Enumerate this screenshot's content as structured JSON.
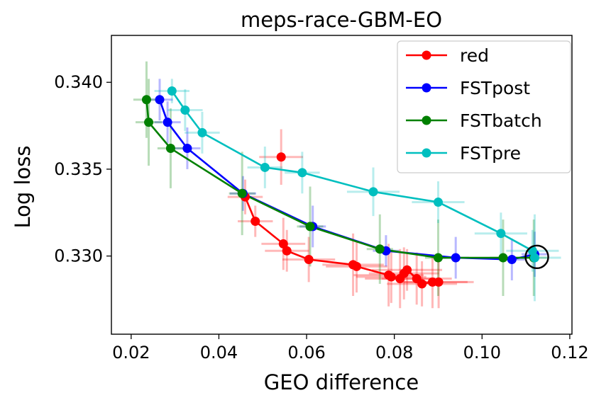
{
  "chart_data": {
    "type": "line",
    "title": "meps-race-GBM-EO",
    "xlabel": "GEO difference",
    "ylabel": "Log loss",
    "xlim": [
      0.0155,
      0.1205
    ],
    "ylim": [
      0.3255,
      0.3427
    ],
    "xticks": [
      0.02,
      0.04,
      0.06,
      0.08,
      0.1,
      0.12
    ],
    "xtick_labels": [
      "0.02",
      "0.04",
      "0.06",
      "0.08",
      "0.10",
      "0.12"
    ],
    "yticks": [
      0.33,
      0.335,
      0.34
    ],
    "ytick_labels": [
      "0.330",
      "0.335",
      "0.340"
    ],
    "grid": false,
    "legend_position": "top-right",
    "series": [
      {
        "name": "red",
        "color": "#ff0000",
        "connected": [
          {
            "x": 0.046,
            "y": 0.3334,
            "xerr": 0.004,
            "yerr": 0.001
          },
          {
            "x": 0.0483,
            "y": 0.332,
            "xerr": 0.004,
            "yerr": 0.0009
          },
          {
            "x": 0.0547,
            "y": 0.3307,
            "xerr": 0.005,
            "yerr": 0.0015
          },
          {
            "x": 0.0555,
            "y": 0.3303,
            "xerr": 0.005,
            "yerr": 0.0012
          },
          {
            "x": 0.0605,
            "y": 0.3298,
            "xerr": 0.006,
            "yerr": 0.0013
          },
          {
            "x": 0.0706,
            "y": 0.3295,
            "xerr": 0.007,
            "yerr": 0.0018
          },
          {
            "x": 0.0714,
            "y": 0.3294,
            "xerr": 0.007,
            "yerr": 0.0015
          },
          {
            "x": 0.0787,
            "y": 0.3289,
            "xerr": 0.008,
            "yerr": 0.0018
          },
          {
            "x": 0.0793,
            "y": 0.3288,
            "xerr": 0.008,
            "yerr": 0.0015
          },
          {
            "x": 0.0813,
            "y": 0.3287,
            "xerr": 0.008,
            "yerr": 0.0017
          },
          {
            "x": 0.0822,
            "y": 0.329,
            "xerr": 0.008,
            "yerr": 0.0015
          },
          {
            "x": 0.0829,
            "y": 0.3292,
            "xerr": 0.008,
            "yerr": 0.0012
          },
          {
            "x": 0.0851,
            "y": 0.3287,
            "xerr": 0.008,
            "yerr": 0.0015
          },
          {
            "x": 0.0863,
            "y": 0.3284,
            "xerr": 0.008,
            "yerr": 0.0013
          },
          {
            "x": 0.0887,
            "y": 0.3285,
            "xerr": 0.008,
            "yerr": 0.0015
          },
          {
            "x": 0.0901,
            "y": 0.3285,
            "xerr": 0.008,
            "yerr": 0.0015
          }
        ],
        "extra_points": [
          {
            "x": 0.0542,
            "y": 0.3357,
            "xerr": 0.005,
            "yerr": 0.0016
          }
        ]
      },
      {
        "name": "FSTpost",
        "color": "#0000ff",
        "connected": [
          {
            "x": 0.0265,
            "y": 0.339,
            "xerr": 0.003,
            "yerr": 0.0012
          },
          {
            "x": 0.0283,
            "y": 0.3377,
            "xerr": 0.003,
            "yerr": 0.0012
          },
          {
            "x": 0.0328,
            "y": 0.3362,
            "xerr": 0.003,
            "yerr": 0.0012
          },
          {
            "x": 0.0455,
            "y": 0.3336,
            "xerr": 0.003,
            "yerr": 0.001
          },
          {
            "x": 0.0614,
            "y": 0.3317,
            "xerr": 0.003,
            "yerr": 0.0012
          },
          {
            "x": 0.0781,
            "y": 0.3303,
            "xerr": 0.003,
            "yerr": 0.0009
          },
          {
            "x": 0.094,
            "y": 0.3299,
            "xerr": 0.003,
            "yerr": 0.0012
          },
          {
            "x": 0.1068,
            "y": 0.3298,
            "xerr": 0.003,
            "yerr": 0.0012
          },
          {
            "x": 0.112,
            "y": 0.3301,
            "xerr": 0.003,
            "yerr": 0.0013
          }
        ]
      },
      {
        "name": "FSTbatch",
        "color": "#008000",
        "connected": [
          {
            "x": 0.0235,
            "y": 0.339,
            "xerr": 0.003,
            "yerr": 0.0022
          },
          {
            "x": 0.024,
            "y": 0.3377,
            "xerr": 0.003,
            "yerr": 0.0025
          },
          {
            "x": 0.029,
            "y": 0.3362,
            "xerr": 0.003,
            "yerr": 0.0023
          },
          {
            "x": 0.0453,
            "y": 0.3336,
            "xerr": 0.003,
            "yerr": 0.0024
          },
          {
            "x": 0.0608,
            "y": 0.3317,
            "xerr": 0.003,
            "yerr": 0.0023
          },
          {
            "x": 0.0767,
            "y": 0.3304,
            "xerr": 0.003,
            "yerr": 0.002
          },
          {
            "x": 0.09,
            "y": 0.3299,
            "xerr": 0.003,
            "yerr": 0.0022
          },
          {
            "x": 0.1048,
            "y": 0.3299,
            "xerr": 0.003,
            "yerr": 0.0022
          },
          {
            "x": 0.1118,
            "y": 0.3299,
            "xerr": 0.003,
            "yerr": 0.0022
          }
        ]
      },
      {
        "name": "FSTpre",
        "color": "#00bfbf",
        "connected": [
          {
            "x": 0.0293,
            "y": 0.3395,
            "xerr": 0.004,
            "yerr": 0.0007
          },
          {
            "x": 0.0323,
            "y": 0.3384,
            "xerr": 0.004,
            "yerr": 0.0012
          },
          {
            "x": 0.0362,
            "y": 0.3371,
            "xerr": 0.004,
            "yerr": 0.0012
          },
          {
            "x": 0.0505,
            "y": 0.3351,
            "xerr": 0.004,
            "yerr": 0.0012
          },
          {
            "x": 0.059,
            "y": 0.3348,
            "xerr": 0.004,
            "yerr": 0.0012
          },
          {
            "x": 0.0752,
            "y": 0.3337,
            "xerr": 0.006,
            "yerr": 0.0014
          },
          {
            "x": 0.09,
            "y": 0.3331,
            "xerr": 0.006,
            "yerr": 0.0012
          },
          {
            "x": 0.1043,
            "y": 0.3313,
            "xerr": 0.006,
            "yerr": 0.0012
          },
          {
            "x": 0.1115,
            "y": 0.3303,
            "xerr": 0.006,
            "yerr": 0.0012
          },
          {
            "x": 0.112,
            "y": 0.3299,
            "xerr": 0.006,
            "yerr": 0.0025
          }
        ]
      }
    ],
    "annotation": {
      "type": "circle",
      "x": 0.1125,
      "y": 0.32995,
      "color": "#000000"
    }
  }
}
